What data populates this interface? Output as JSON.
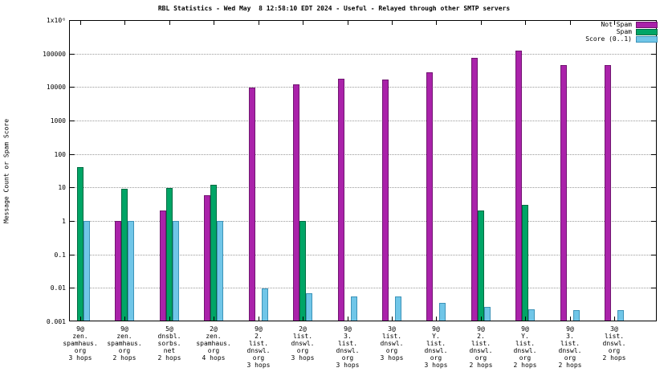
{
  "chart_data": {
    "type": "bar",
    "title": "RBL Statistics - Wed May  8 12:58:10 EDT 2024 - Useful - Relayed through other SMTP servers",
    "xlabel": "",
    "ylabel": "Message Count or Spam Score",
    "yscale": "log",
    "ylim": [
      0.001,
      1000000
    ],
    "grid": "horizontal-dotted",
    "legend_position": "top-right",
    "yticks": [
      {
        "label": "1x10⁶",
        "value": 1000000
      },
      {
        "label": "100000",
        "value": 100000
      },
      {
        "label": "10000",
        "value": 10000
      },
      {
        "label": "1000",
        "value": 1000
      },
      {
        "label": "100",
        "value": 100
      },
      {
        "label": "10",
        "value": 10
      },
      {
        "label": "1",
        "value": 1
      },
      {
        "label": "0.1",
        "value": 0.1
      },
      {
        "label": "0.01",
        "value": 0.01
      },
      {
        "label": "0.001",
        "value": 0.001
      }
    ],
    "categories": [
      [
        "9@",
        "zen.",
        "spamhaus.",
        "org",
        "3 hops"
      ],
      [
        "9@",
        "zen.",
        "spamhaus.",
        "org",
        "2 hops"
      ],
      [
        "5@",
        "dnsbl.",
        "sorbs.",
        "net",
        "2 hops"
      ],
      [
        "2@",
        "zen.",
        "spamhaus.",
        "org",
        "4 hops"
      ],
      [
        "9@",
        "2.",
        "list.",
        "dnswl.",
        "org",
        "3 hops"
      ],
      [
        "2@",
        "list.",
        "dnswl.",
        "org",
        "3 hops"
      ],
      [
        "9@",
        "3.",
        "list.",
        "dnswl.",
        "org",
        "3 hops"
      ],
      [
        "3@",
        "list.",
        "dnswl.",
        "org",
        "3 hops"
      ],
      [
        "9@",
        "Y.",
        "list.",
        "dnswl.",
        "org",
        "3 hops"
      ],
      [
        "9@",
        "2.",
        "list.",
        "dnswl.",
        "org",
        "2 hops"
      ],
      [
        "9@",
        "Y.",
        "list.",
        "dnswl.",
        "org",
        "2 hops"
      ],
      [
        "9@",
        "3.",
        "list.",
        "dnswl.",
        "org",
        "2 hops"
      ],
      [
        "3@",
        "list.",
        "dnswl.",
        "org",
        "2 hops"
      ]
    ],
    "series": [
      {
        "name": "Not Spam",
        "color": "#aa22aa",
        "border": "#711671",
        "values": [
          null,
          1,
          2,
          6,
          9500,
          12000,
          17500,
          17000,
          27000,
          75000,
          120000,
          45000,
          45000
        ]
      },
      {
        "name": "Spam",
        "color": "#00a566",
        "border": "#006b42",
        "values": [
          40,
          9,
          9.5,
          12,
          null,
          1,
          null,
          null,
          null,
          2,
          3,
          null,
          null
        ]
      },
      {
        "name": "Score (0..1)",
        "color": "#70c6e8",
        "border": "#3d93b8",
        "values": [
          1,
          1,
          1,
          1,
          0.0095,
          0.007,
          0.0055,
          0.0055,
          0.0035,
          0.0027,
          0.0023,
          0.0022,
          0.0022
        ]
      }
    ]
  }
}
